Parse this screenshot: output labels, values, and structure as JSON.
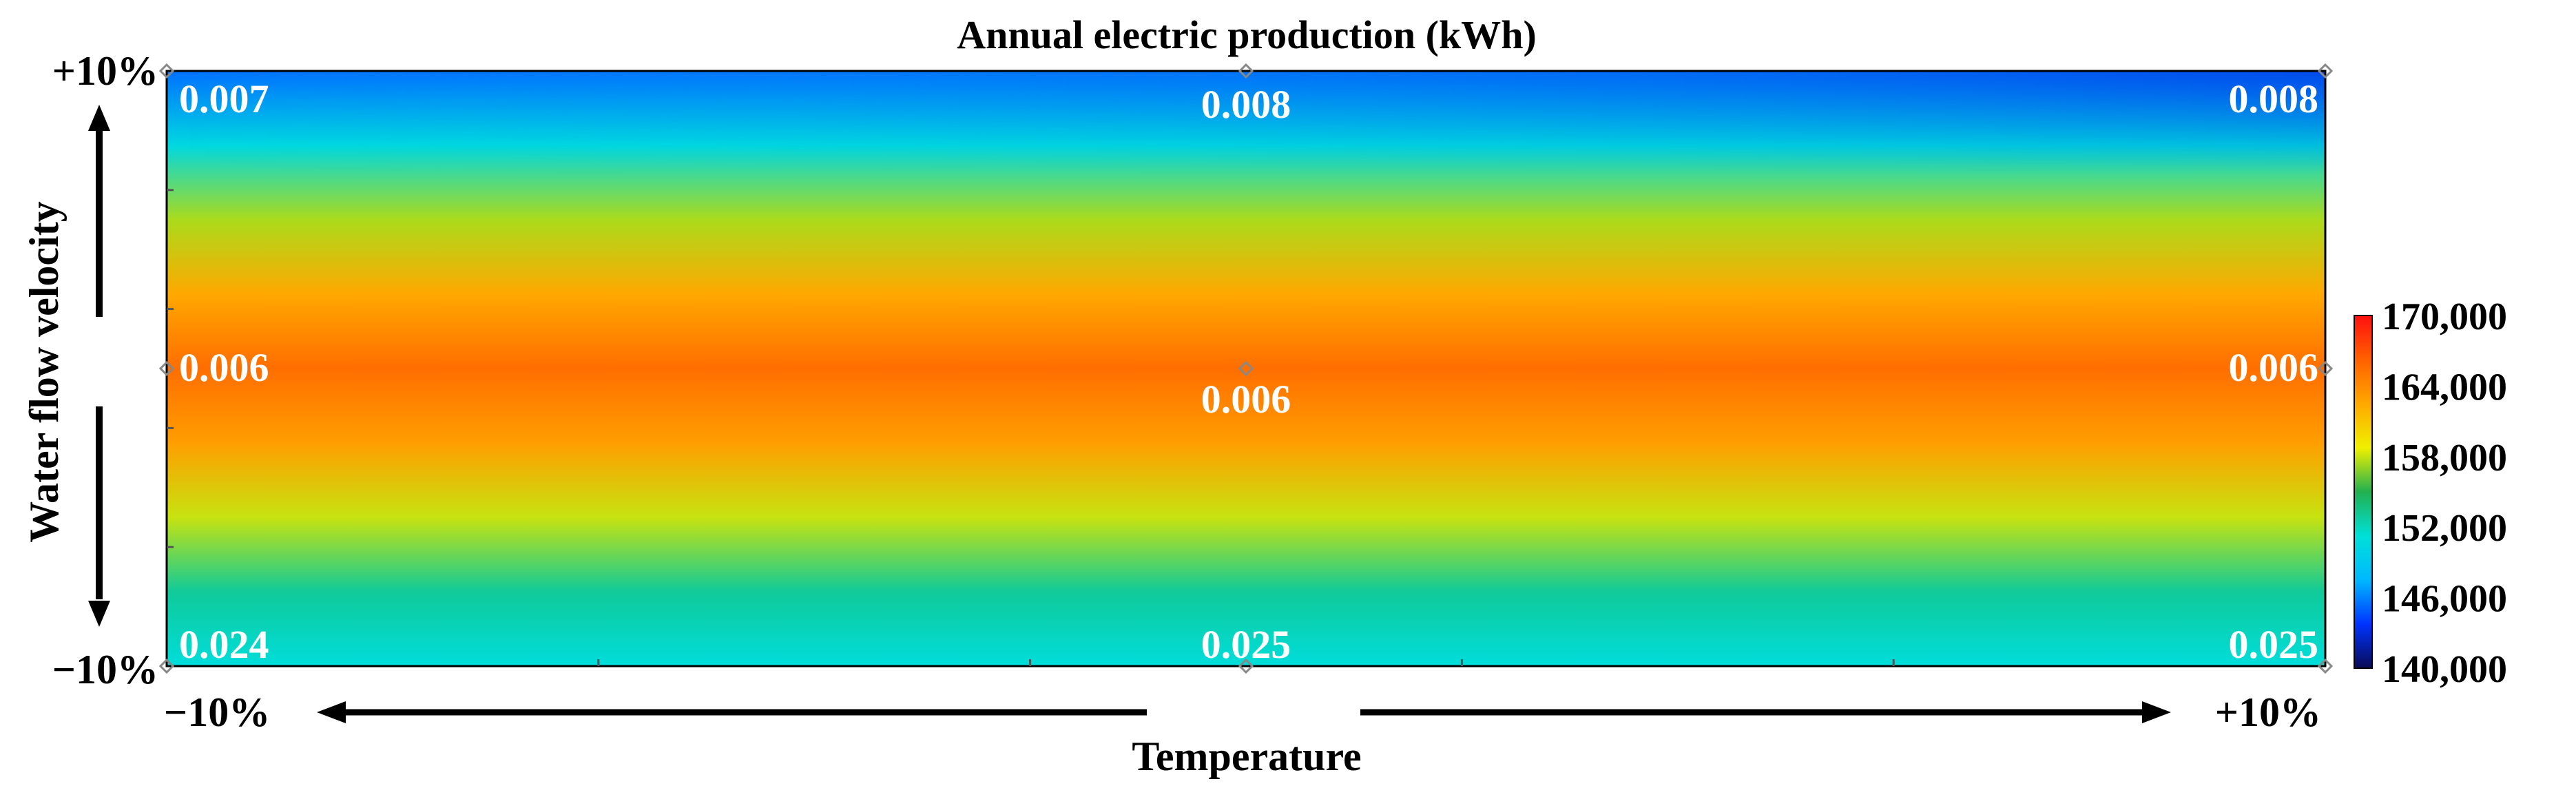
{
  "chart_data": {
    "type": "heatmap",
    "title": "Annual electric production (kWh)",
    "xlabel": "Temperature",
    "ylabel": "Water flow velocity",
    "x_ticks": [
      "−10%",
      "+10%"
    ],
    "y_ticks": [
      "+10%",
      "−10%"
    ],
    "x_values": [
      -10,
      0,
      10
    ],
    "y_values": [
      10,
      0,
      -10
    ],
    "colorbar": {
      "min": 140000,
      "max": 170000,
      "ticks": [
        "170,000",
        "164,000",
        "158,000",
        "152,000",
        "146,000",
        "140,000"
      ],
      "tick_values": [
        170000,
        164000,
        158000,
        152000,
        146000,
        140000
      ]
    },
    "rows": [
      {
        "y": 10,
        "band_values": [
          146000,
          148000
        ]
      },
      {
        "y": 0,
        "band_values": [
          165500,
          165500
        ]
      }
    ],
    "vertical_profile": [
      {
        "y": 10,
        "value": 145500
      },
      {
        "y": 7.5,
        "value": 150500
      },
      {
        "y": 5,
        "value": 157500
      },
      {
        "y": 2.5,
        "value": 162500
      },
      {
        "y": 0,
        "value": 165500
      },
      {
        "y": -2.5,
        "value": 163000
      },
      {
        "y": -5,
        "value": 158000
      },
      {
        "y": -7.5,
        "value": 153000
      },
      {
        "y": -10,
        "value": 151000
      }
    ],
    "annotations": [
      {
        "x": -10,
        "y": 10,
        "text": "0.007"
      },
      {
        "x": 0,
        "y": 10,
        "text": "0.008"
      },
      {
        "x": 10,
        "y": 10,
        "text": "0.008"
      },
      {
        "x": -10,
        "y": 0,
        "text": "0.006"
      },
      {
        "x": 0,
        "y": 0,
        "text": "0.006"
      },
      {
        "x": 10,
        "y": 0,
        "text": "0.006"
      },
      {
        "x": -10,
        "y": -10,
        "text": "0.024"
      },
      {
        "x": 0,
        "y": -10,
        "text": "0.025"
      },
      {
        "x": 10,
        "y": -10,
        "text": "0.025"
      }
    ],
    "colors": {
      "scale": [
        "#0a0a55",
        "#0033ff",
        "#00b8ff",
        "#00e0d8",
        "#22b050",
        "#f0f000",
        "#ffa800",
        "#ff6000",
        "#ff1010"
      ],
      "text": "#ffffff",
      "axis": "#000000"
    }
  }
}
